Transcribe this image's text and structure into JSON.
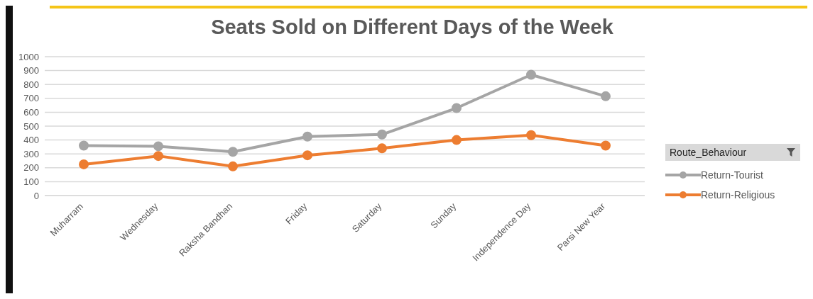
{
  "chart_data": {
    "type": "line",
    "title": "Seats Sold on Different Days of the Week",
    "legend_title": "Route_Behaviour",
    "categories": [
      "Muharram",
      "Wednesday",
      "Raksha Bandhan",
      "Friday",
      "Saturday",
      "Sunday",
      "Independence Day",
      "Parsi New Year"
    ],
    "series": [
      {
        "name": "Return-Tourist",
        "color": "#a5a5a5",
        "values": [
          360,
          355,
          315,
          425,
          440,
          630,
          870,
          715
        ]
      },
      {
        "name": "Return-Religious",
        "color": "#ed7d31",
        "values": [
          225,
          285,
          210,
          290,
          340,
          400,
          435,
          360
        ]
      }
    ],
    "ylim": [
      0,
      1000
    ],
    "yticks": [
      0,
      100,
      200,
      300,
      400,
      500,
      600,
      700,
      800,
      900,
      1000
    ],
    "grid": "y",
    "legend": "right",
    "marker": "circle",
    "line_style": "solid"
  }
}
